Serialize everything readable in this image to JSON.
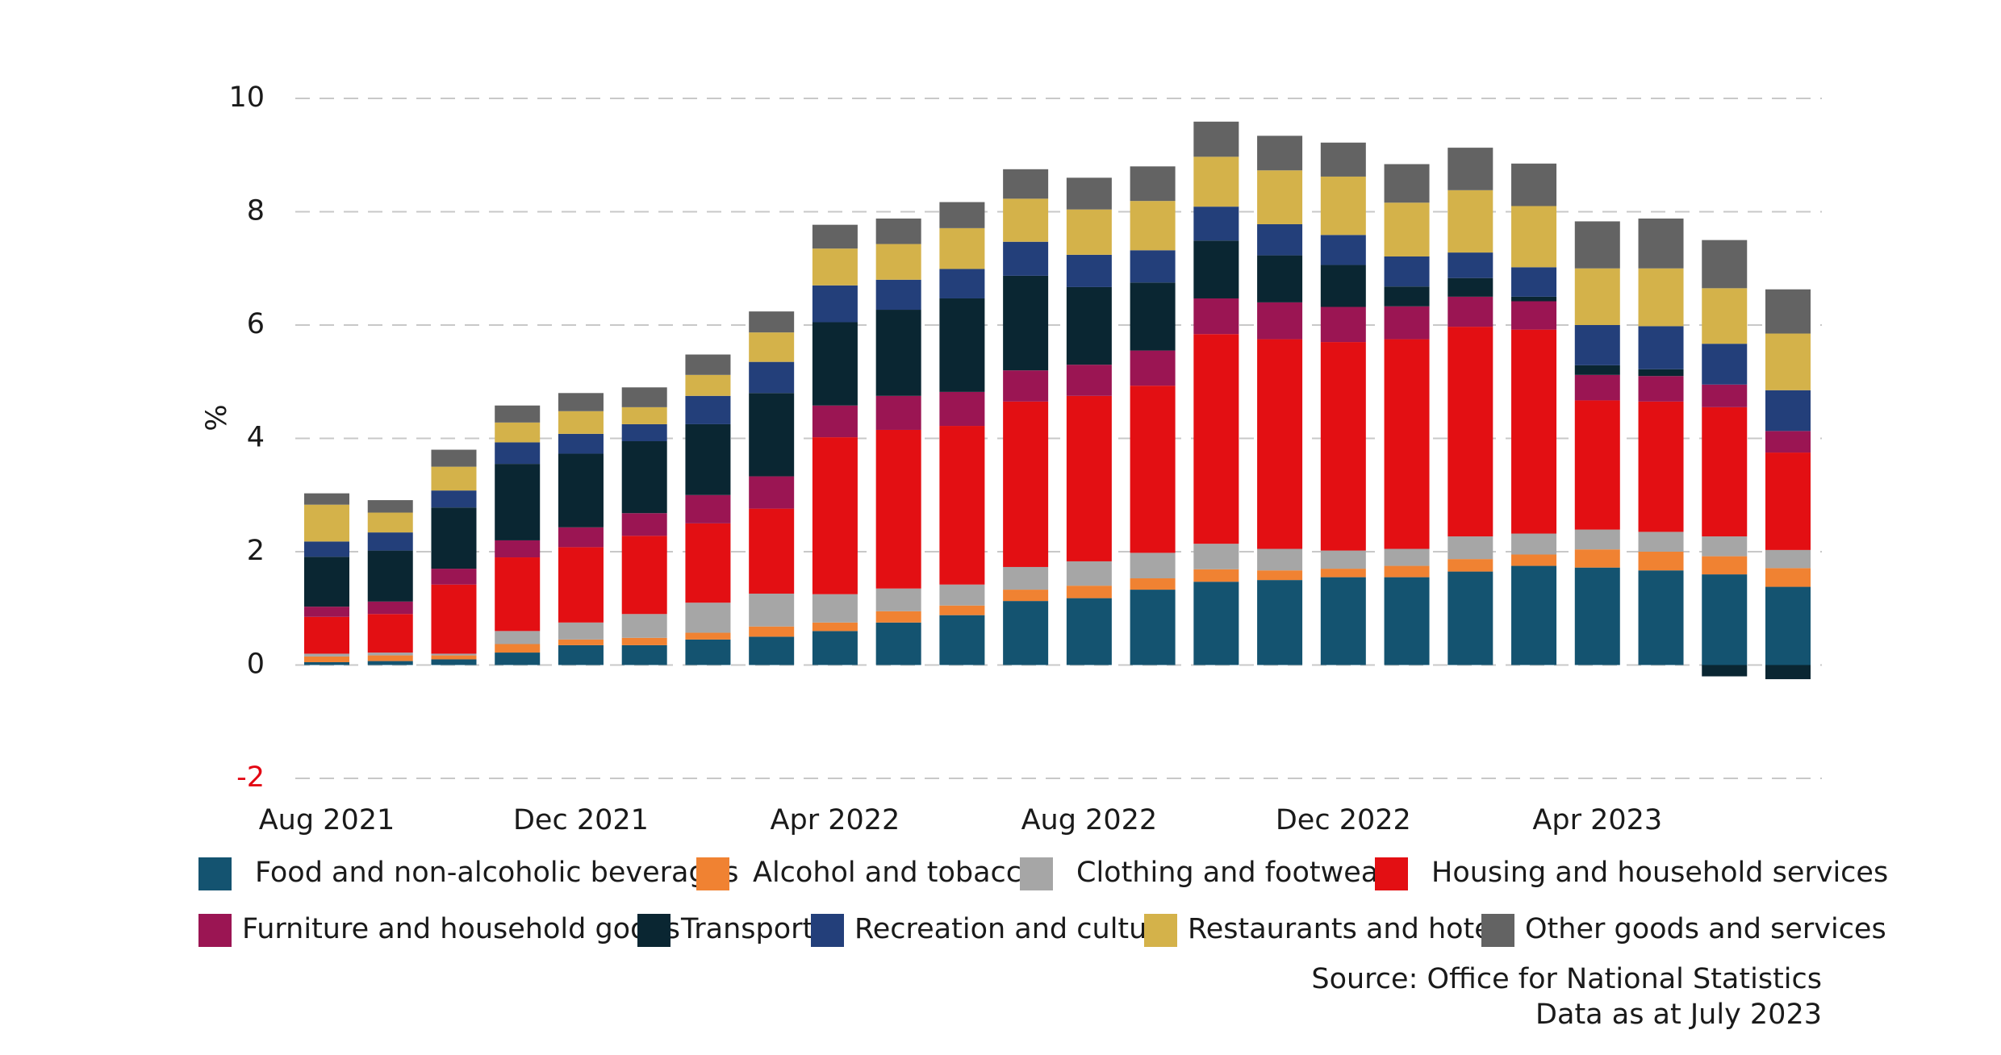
{
  "chart_data": {
    "type": "stacked_bar",
    "y_axis_label": "%",
    "source": "Source: Office for National Statistics",
    "note": "Data as at July 2023",
    "categories": [
      "Aug 2021",
      null,
      null,
      null,
      "Dec 2021",
      null,
      null,
      null,
      "Apr 2022",
      null,
      null,
      null,
      "Aug 2022",
      null,
      null,
      null,
      "Dec 2022",
      null,
      null,
      null,
      "Apr 2023",
      null,
      null,
      null
    ],
    "ylim": [
      -2,
      10
    ],
    "yticks": [
      -2,
      0,
      2,
      4,
      6,
      8,
      10
    ],
    "negative_tick_color": "#e30613",
    "grid": true,
    "series": [
      {
        "name": "Food and non-alcoholic beverages",
        "color": "#145370",
        "values": [
          0.05,
          0.07,
          0.1,
          0.22,
          0.35,
          0.35,
          0.45,
          0.5,
          0.6,
          0.75,
          0.88,
          1.13,
          1.18,
          1.33,
          1.47,
          1.5,
          1.55,
          1.55,
          1.65,
          1.75,
          1.72,
          1.67,
          1.6,
          1.38
        ]
      },
      {
        "name": "Alcohol and tobacco",
        "color": "#f08232",
        "values": [
          0.1,
          0.1,
          0.07,
          0.15,
          0.1,
          0.13,
          0.12,
          0.18,
          0.15,
          0.2,
          0.17,
          0.2,
          0.22,
          0.2,
          0.22,
          0.17,
          0.15,
          0.2,
          0.22,
          0.2,
          0.32,
          0.33,
          0.32,
          0.33
        ]
      },
      {
        "name": "Clothing and footwear",
        "color": "#a6a6a6",
        "values": [
          0.05,
          0.05,
          0.03,
          0.23,
          0.3,
          0.42,
          0.53,
          0.58,
          0.5,
          0.4,
          0.37,
          0.4,
          0.43,
          0.45,
          0.45,
          0.38,
          0.32,
          0.3,
          0.4,
          0.37,
          0.35,
          0.35,
          0.35,
          0.32
        ]
      },
      {
        "name": "Housing and household services",
        "color": "#e30f13",
        "values": [
          0.65,
          0.68,
          1.22,
          1.3,
          1.33,
          1.38,
          1.4,
          1.5,
          2.77,
          2.8,
          2.8,
          2.92,
          2.92,
          2.95,
          3.7,
          3.7,
          3.68,
          3.7,
          3.7,
          3.6,
          2.28,
          2.3,
          2.28,
          1.72
        ]
      },
      {
        "name": "Furniture and household goods",
        "color": "#9b1553",
        "values": [
          0.18,
          0.22,
          0.28,
          0.3,
          0.35,
          0.4,
          0.5,
          0.57,
          0.56,
          0.6,
          0.6,
          0.55,
          0.55,
          0.62,
          0.63,
          0.65,
          0.62,
          0.58,
          0.53,
          0.5,
          0.45,
          0.45,
          0.4,
          0.38
        ]
      },
      {
        "name": "Transport",
        "color": "#0a2632",
        "values": [
          0.88,
          0.9,
          1.08,
          1.35,
          1.3,
          1.27,
          1.25,
          1.47,
          1.47,
          1.52,
          1.65,
          1.67,
          1.37,
          1.2,
          1.02,
          0.83,
          0.74,
          0.35,
          0.33,
          0.08,
          0.17,
          0.12,
          -0.2,
          -0.25
        ]
      },
      {
        "name": "Recreation and culture",
        "color": "#233f7a",
        "values": [
          0.27,
          0.32,
          0.3,
          0.38,
          0.35,
          0.3,
          0.5,
          0.55,
          0.65,
          0.53,
          0.52,
          0.6,
          0.57,
          0.57,
          0.6,
          0.55,
          0.53,
          0.53,
          0.45,
          0.52,
          0.71,
          0.76,
          0.72,
          0.72
        ]
      },
      {
        "name": "Restaurants and hotels",
        "color": "#d4b24a",
        "values": [
          0.65,
          0.35,
          0.42,
          0.35,
          0.4,
          0.3,
          0.37,
          0.52,
          0.65,
          0.63,
          0.72,
          0.76,
          0.8,
          0.87,
          0.88,
          0.95,
          1.03,
          0.95,
          1.1,
          1.08,
          1.0,
          1.02,
          0.98,
          1.0
        ]
      },
      {
        "name": "Other goods and services",
        "color": "#636363",
        "values": [
          0.2,
          0.22,
          0.3,
          0.3,
          0.32,
          0.35,
          0.36,
          0.37,
          0.42,
          0.45,
          0.46,
          0.52,
          0.56,
          0.61,
          0.62,
          0.61,
          0.6,
          0.68,
          0.75,
          0.75,
          0.83,
          0.88,
          0.85,
          0.78
        ]
      }
    ]
  }
}
